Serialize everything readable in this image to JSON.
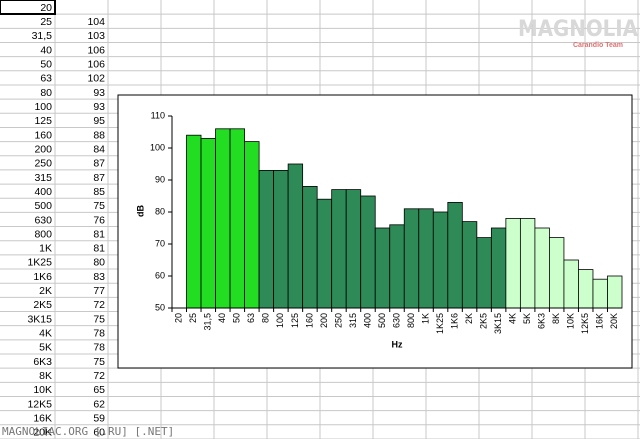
{
  "chart_data": {
    "type": "bar",
    "categories": [
      "20",
      "25",
      "31,5",
      "40",
      "50",
      "63",
      "80",
      "100",
      "125",
      "160",
      "200",
      "250",
      "315",
      "400",
      "500",
      "630",
      "800",
      "1K",
      "1K25",
      "1K6",
      "2K",
      "2K5",
      "3K15",
      "4K",
      "5K",
      "6K3",
      "8K",
      "10K",
      "12K5",
      "16K",
      "20K"
    ],
    "values": [
      null,
      104,
      103,
      106,
      106,
      102,
      93,
      93,
      95,
      88,
      84,
      87,
      87,
      85,
      75,
      76,
      81,
      81,
      80,
      83,
      77,
      72,
      75,
      78,
      78,
      75,
      72,
      65,
      62,
      59,
      60
    ],
    "colors": [
      null,
      "#22dd22",
      "#22dd22",
      "#22dd22",
      "#22dd22",
      "#22dd22",
      "#2e8b57",
      "#2e8b57",
      "#2e8b57",
      "#2e8b57",
      "#2e8b57",
      "#2e8b57",
      "#2e8b57",
      "#2e8b57",
      "#2e8b57",
      "#2e8b57",
      "#2e8b57",
      "#2e8b57",
      "#2e8b57",
      "#2e8b57",
      "#2e8b57",
      "#2e8b57",
      "#2e8b57",
      "#ccffcc",
      "#ccffcc",
      "#ccffcc",
      "#ccffcc",
      "#ccffcc",
      "#ccffcc",
      "#ccffcc",
      "#ccffcc"
    ],
    "xlabel": "Hz",
    "ylabel": "dB",
    "ylim": [
      50,
      110
    ],
    "yticks": [
      50,
      60,
      70,
      80,
      90,
      100,
      110
    ]
  },
  "watermark": {
    "title": "MAGNOLIA",
    "subtitle": "Carandio Team"
  },
  "footer": "MAGNOLIAC.ORG [.RU] [.NET]"
}
